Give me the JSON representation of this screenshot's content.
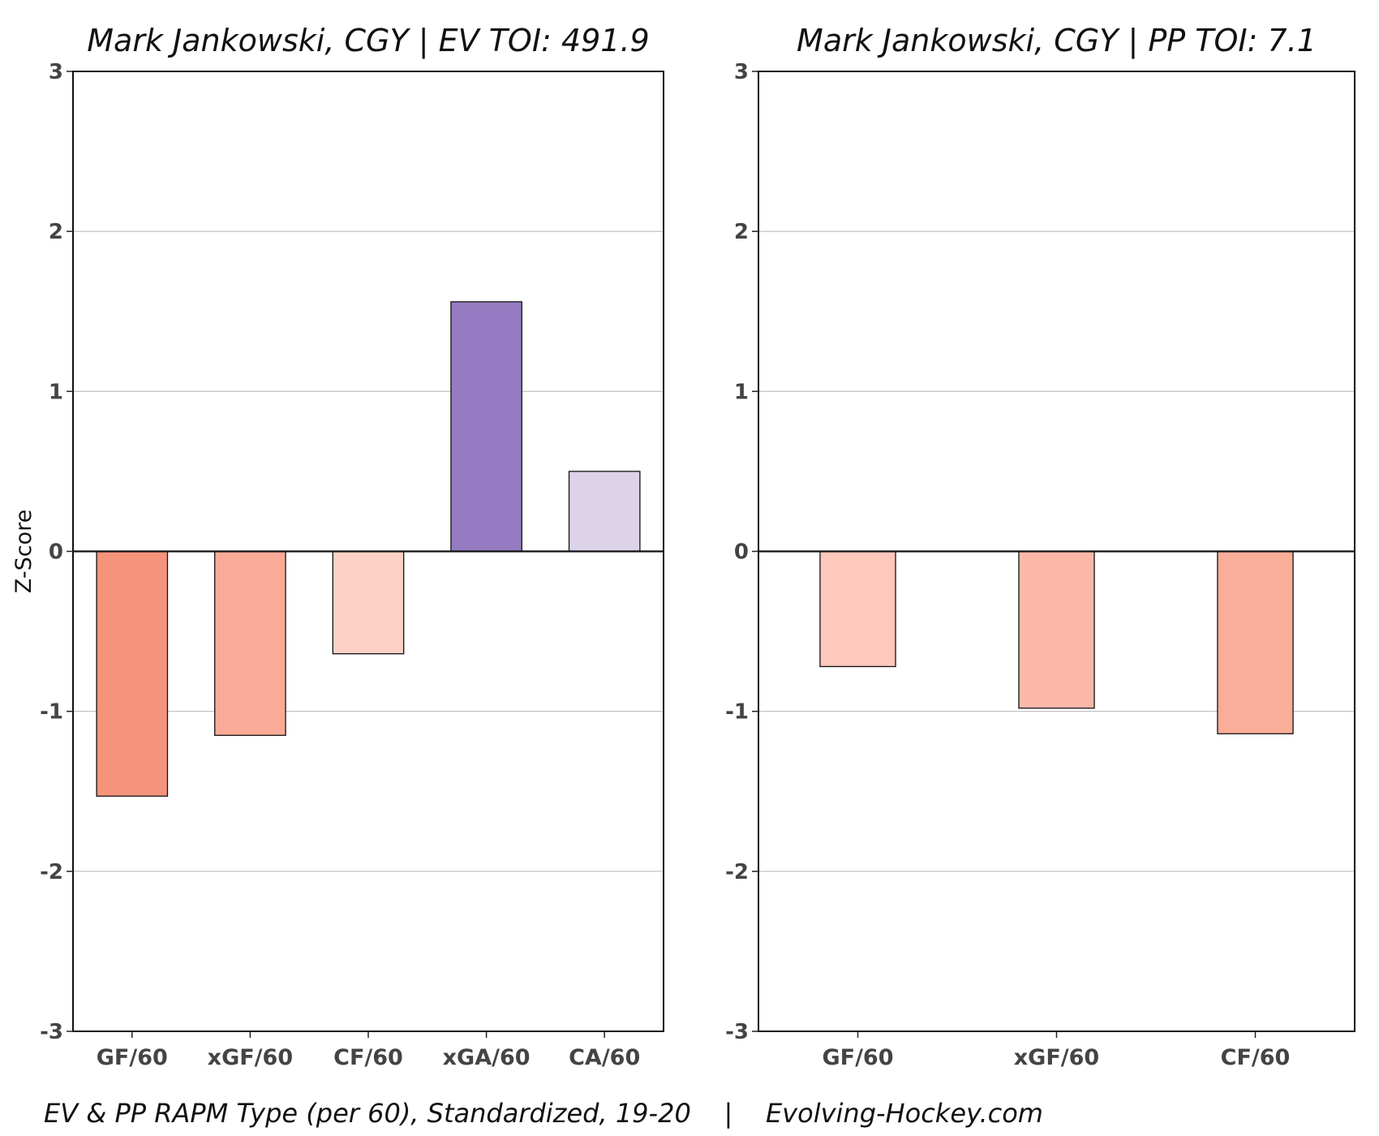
{
  "chart_data": [
    {
      "type": "bar",
      "title": "Mark Jankowski, CGY  |  EV TOI: 491.9",
      "ylabel": "Z-Score",
      "ylim": [
        -3,
        3
      ],
      "yticks": [
        3,
        2,
        1,
        0,
        -1,
        -2,
        -3
      ],
      "grid": true,
      "categories": [
        "GF/60",
        "xGF/60",
        "CF/60",
        "xGA/60",
        "CA/60"
      ],
      "values": [
        -1.53,
        -1.15,
        -0.64,
        1.56,
        0.5
      ],
      "colors": [
        "#f5937b",
        "#faab97",
        "#fdd1c6",
        "#957cc2",
        "#dcd3ea"
      ]
    },
    {
      "type": "bar",
      "title": "Mark Jankowski, CGY  |  PP TOI: 7.1",
      "ylim": [
        -3,
        3
      ],
      "yticks": [
        3,
        2,
        1,
        0,
        -1,
        -2,
        -3
      ],
      "grid": true,
      "categories": [
        "GF/60",
        "xGF/60",
        "CF/60"
      ],
      "values": [
        -0.72,
        -0.98,
        -1.14
      ],
      "colors": [
        "#fec8bc",
        "#fbb8a8",
        "#faad99"
      ]
    }
  ],
  "caption": "EV & PP RAPM Type (per 60), Standardized, 19-20    |    Evolving-Hockey.com"
}
